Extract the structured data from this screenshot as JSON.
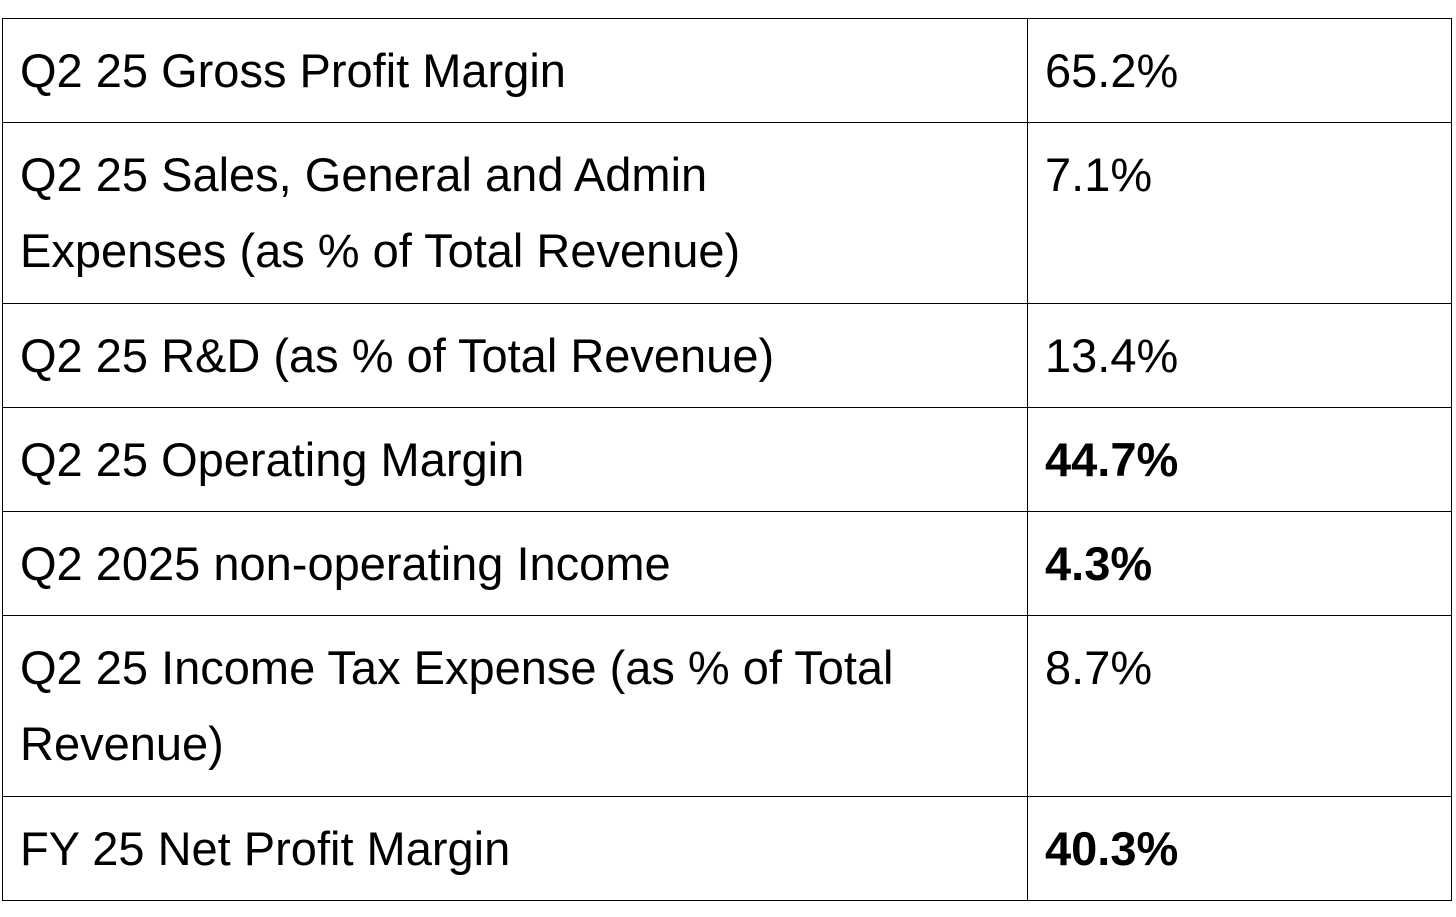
{
  "rows": [
    {
      "label": "Q2 25 Gross Profit Margin",
      "value": "65.2%",
      "bold": false,
      "lines": 1
    },
    {
      "label": "Q2 25 Sales, General and Admin Expenses (as % of Total Revenue)",
      "value": "7.1%",
      "bold": false,
      "lines": 2
    },
    {
      "label": "Q2 25 R&D (as % of Total Revenue)",
      "value": "13.4%",
      "bold": false,
      "lines": 1
    },
    {
      "label": "Q2 25 Operating Margin",
      "value": "44.7%",
      "bold": true,
      "lines": 1
    },
    {
      "label": "Q2 2025 non-operating Income",
      "value": "4.3%",
      "bold": true,
      "lines": 1
    },
    {
      "label": "Q2 25 Income Tax Expense (as % of Total Revenue)",
      "value": "8.7%",
      "bold": false,
      "lines": 2
    },
    {
      "label": "FY 25 Net Profit Margin",
      "value": "40.3%",
      "bold": true,
      "lines": 1
    }
  ]
}
